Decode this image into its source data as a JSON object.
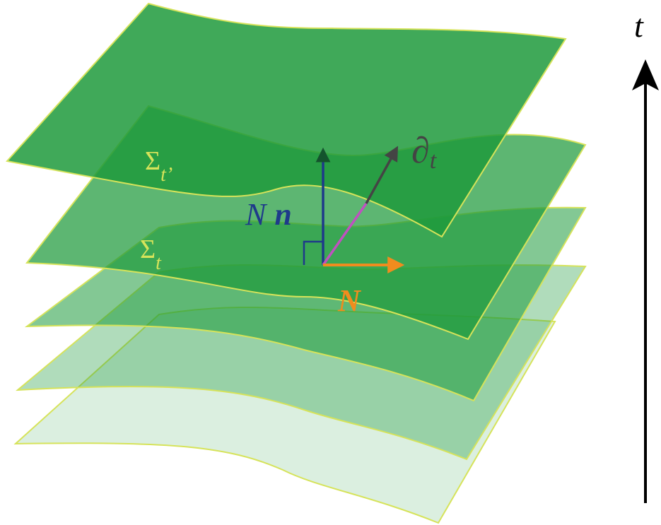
{
  "labels": {
    "time_axis": "t",
    "sigma_t_prime": "Σ",
    "sigma_t_prime_sub": "t’",
    "sigma_t": "Σ",
    "sigma_t_sub": "t",
    "normal_vector_coef": "N",
    "normal_vector": "n",
    "shift_vector": "N",
    "time_vector": "∂",
    "time_vector_sub": "t"
  },
  "colors": {
    "sheet_fill": "#1e9a3c",
    "sheet_edge": "#d6e35a",
    "label_sigma": "#d6e35a",
    "normal": "#1e3a8a",
    "normal_arrowhead": "#14532d",
    "shift": "#f08c1e",
    "time_vector": "#444444",
    "time_vector_segment": "#c050c0",
    "axis": "#000000"
  },
  "sheet_opacities": [
    0.16,
    0.35,
    0.55,
    0.72,
    0.85
  ]
}
